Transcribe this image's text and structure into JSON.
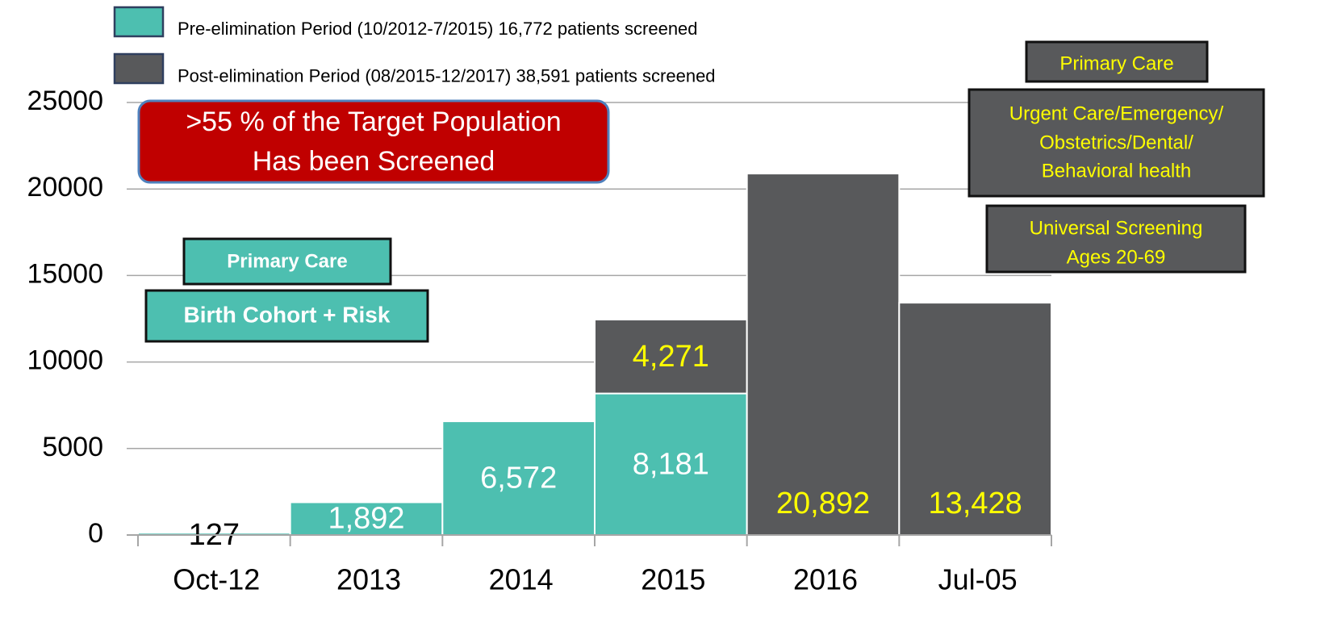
{
  "chart_data": {
    "type": "stacked_bar",
    "categories": [
      "Oct-12",
      "2013",
      "2014",
      "2015",
      "2016",
      "Jul-05"
    ],
    "series": [
      {
        "name": "Pre-elimination Period (10/2012-7/2015) 16,772 patients screened",
        "color": "#4dbfb0",
        "label_color": "#ffffff",
        "values": [
          127,
          1892,
          6572,
          8181,
          null,
          null
        ],
        "value_labels": [
          "127",
          "1,892",
          "6,572",
          "8,181",
          null,
          null
        ]
      },
      {
        "name": "Post-elimination Period (08/2015-12/2017) 38,591 patients screened",
        "color": "#58595b",
        "label_color": "#ffff00",
        "values": [
          null,
          null,
          null,
          4271,
          20892,
          13428
        ],
        "value_labels": [
          null,
          null,
          null,
          "4,271",
          "20,892",
          "13,428"
        ]
      }
    ],
    "ylim": [
      0,
      25000
    ],
    "yticks": [
      0,
      5000,
      10000,
      15000,
      20000,
      25000
    ],
    "grid": true,
    "annotations": [
      {
        "lines": [
          ">55 % of the Target Population",
          "Has been Screened"
        ]
      },
      {
        "lines": [
          "Primary Care"
        ]
      },
      {
        "lines": [
          "Birth Cohort + Risk"
        ]
      },
      {
        "lines": [
          "Primary Care"
        ]
      },
      {
        "lines": [
          "Urgent Care/Emergency/",
          "Obstetrics/Dental/",
          "Behavioral health"
        ]
      },
      {
        "lines": [
          "Universal Screening",
          "Ages 20-69"
        ]
      }
    ]
  }
}
